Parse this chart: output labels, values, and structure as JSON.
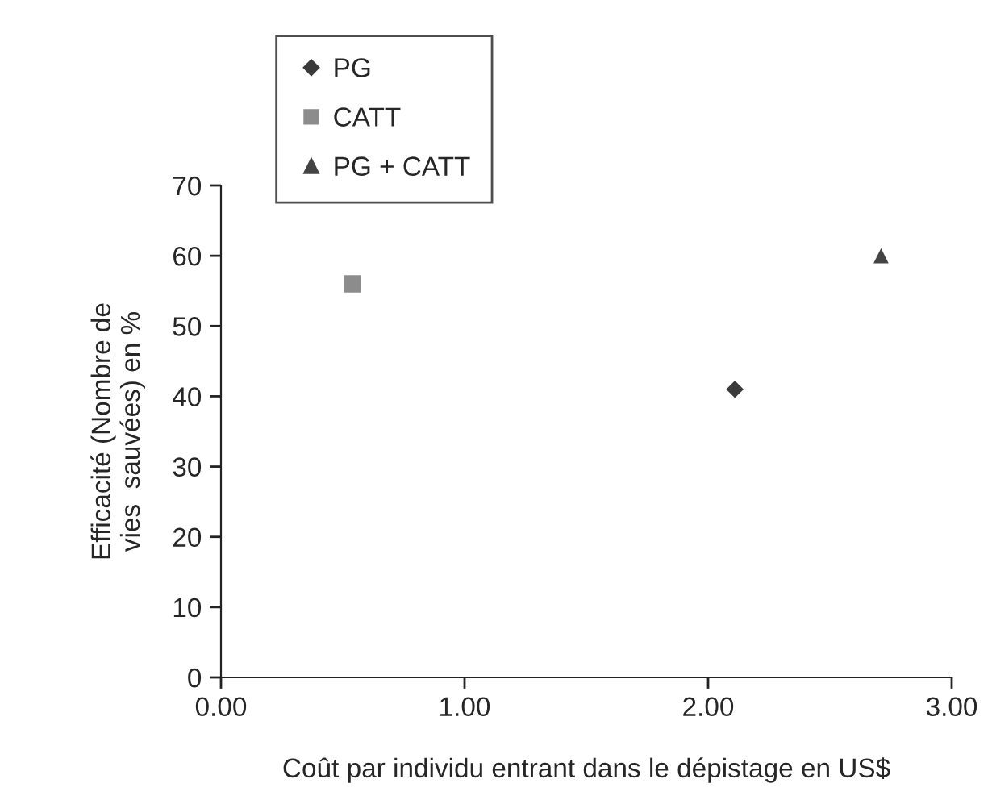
{
  "chart_data": {
    "type": "scatter",
    "xlabel": "Coût par individu entrant dans le dépistage en US$",
    "ylabel": "Efficacité (Nombre de\nvies  sauvées) en %",
    "xlim": [
      0,
      3
    ],
    "xticks": [
      {
        "value": 0,
        "label": "0.00"
      },
      {
        "value": 1,
        "label": "1.00"
      },
      {
        "value": 2,
        "label": "2.00"
      },
      {
        "value": 3,
        "label": "3.00"
      }
    ],
    "ylim": [
      0,
      70
    ],
    "yticks": [
      0,
      10,
      20,
      30,
      40,
      50,
      60,
      70
    ],
    "grid": false,
    "legend": "top left",
    "series": [
      {
        "name": "PG",
        "color": "#3a3a3a",
        "marker": "diamond",
        "x": [
          2.11
        ],
        "values": [
          41
        ]
      },
      {
        "name": "CATT",
        "color": "#8c8c8c",
        "marker": "square",
        "x": [
          0.54
        ],
        "values": [
          56
        ]
      },
      {
        "name": "PG + CATT",
        "color": "#444444",
        "marker": "triangle",
        "x": [
          2.71
        ],
        "values": [
          60
        ]
      }
    ]
  }
}
